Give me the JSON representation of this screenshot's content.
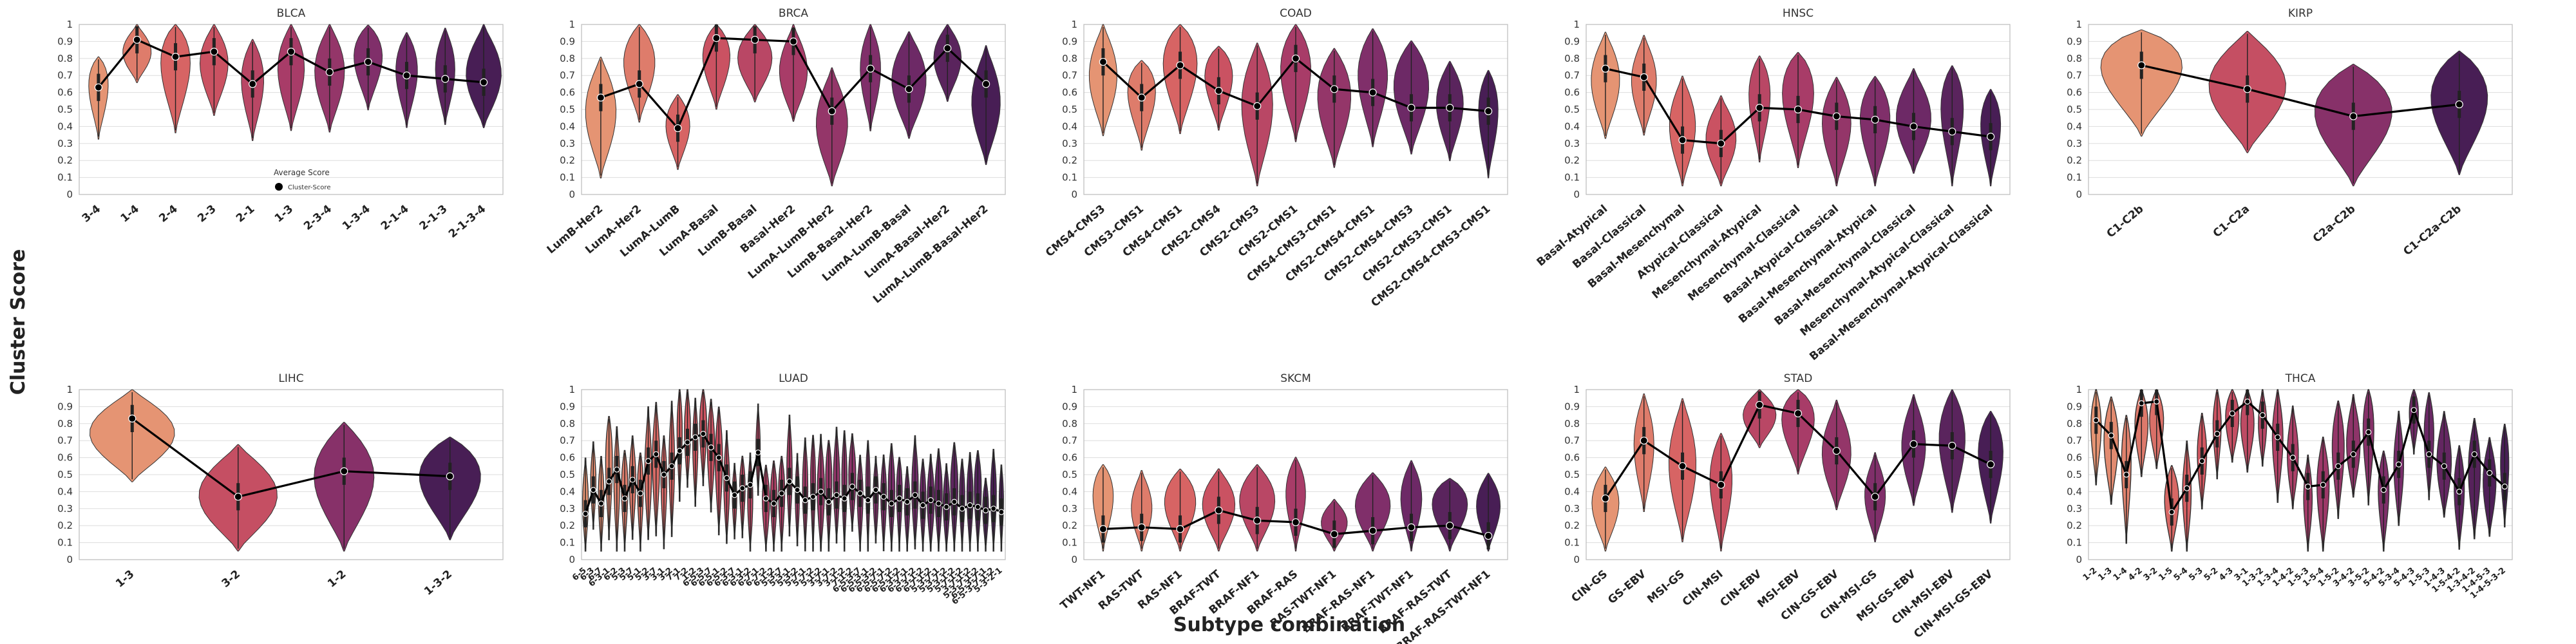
{
  "figure": {
    "ylabel": "Cluster Score",
    "xlabel": "Subtype combination"
  },
  "legend": {
    "title": "Average Score",
    "entry": "Cluster-Score"
  },
  "chart_data": [
    {
      "type": "violin",
      "title": "BLCA",
      "ylim": [
        0,
        1
      ],
      "yticks": [
        "0",
        "0.1",
        "0.2",
        "0.3",
        "0.4",
        "0.5",
        "0.6",
        "0.7",
        "0.8",
        "0.9",
        "1"
      ],
      "categories": [
        "3-4",
        "1-4",
        "2-4",
        "2-3",
        "2-1",
        "1-3",
        "2-3-4",
        "1-3-4",
        "2-1-4",
        "2-1-3",
        "2-1-3-4"
      ],
      "values": [
        0.63,
        0.91,
        0.81,
        0.84,
        0.65,
        0.84,
        0.72,
        0.78,
        0.7,
        0.68,
        0.66
      ],
      "has_legend": true
    },
    {
      "type": "violin",
      "title": "BRCA",
      "ylim": [
        0,
        1
      ],
      "yticks": [
        "0",
        "0.1",
        "0.2",
        "0.3",
        "0.4",
        "0.5",
        "0.6",
        "0.7",
        "0.8",
        "0.9",
        "1"
      ],
      "categories": [
        "LumB-Her2",
        "LumA-Her2",
        "LumA-LumB",
        "LumA-Basal",
        "LumB-Basal",
        "Basal-Her2",
        "LumA-LumB-Her2",
        "LumB-Basal-Her2",
        "LumA-LumB-Basal",
        "LumA-Basal-Her2",
        "LumA-LumB-Basal-Her2"
      ],
      "values": [
        0.57,
        0.65,
        0.39,
        0.92,
        0.91,
        0.9,
        0.49,
        0.74,
        0.62,
        0.86,
        0.65
      ]
    },
    {
      "type": "violin",
      "title": "COAD",
      "ylim": [
        0,
        1
      ],
      "yticks": [
        "0",
        "0.1",
        "0.2",
        "0.3",
        "0.4",
        "0.5",
        "0.6",
        "0.7",
        "0.8",
        "0.9",
        "1"
      ],
      "categories": [
        "CMS4-CMS3",
        "CMS3-CMS1",
        "CMS4-CMS1",
        "CMS2-CMS4",
        "CMS2-CMS3",
        "CMS2-CMS1",
        "CMS4-CMS3-CMS1",
        "CMS2-CMS4-CMS1",
        "CMS2-CMS4-CMS3",
        "CMS2-CMS3-CMS1",
        "CMS2-CMS4-CMS3-CMS1"
      ],
      "values": [
        0.78,
        0.57,
        0.76,
        0.61,
        0.52,
        0.8,
        0.62,
        0.6,
        0.51,
        0.51,
        0.49
      ]
    },
    {
      "type": "violin",
      "title": "HNSC",
      "ylim": [
        0,
        1
      ],
      "yticks": [
        "0",
        "0.1",
        "0.2",
        "0.3",
        "0.4",
        "0.5",
        "0.6",
        "0.7",
        "0.8",
        "0.9",
        "1"
      ],
      "categories": [
        "Basal-Atypical",
        "Basal-Classical",
        "Basal-Mesenchymal",
        "Atypical-Classical",
        "Mesenchymal-Atypical",
        "Mesenchymal-Classical",
        "Basal-Atypical-Classical",
        "Basal-Mesenchymal-Atypical",
        "Basal-Mesenchymal-Classical",
        "Mesenchymal-Atypical-Classical",
        "Basal-Mesenchymal-Atypical-Classical"
      ],
      "values": [
        0.74,
        0.69,
        0.32,
        0.3,
        0.51,
        0.5,
        0.46,
        0.44,
        0.4,
        0.37,
        0.34
      ]
    },
    {
      "type": "violin",
      "title": "KIRP",
      "ylim": [
        0,
        1
      ],
      "yticks": [
        "0",
        "0.1",
        "0.2",
        "0.3",
        "0.4",
        "0.5",
        "0.6",
        "0.7",
        "0.8",
        "0.9",
        "1"
      ],
      "categories": [
        "C1-C2b",
        "C1-C2a",
        "C2a-C2b",
        "C1-C2a-C2b"
      ],
      "values": [
        0.76,
        0.62,
        0.46,
        0.53
      ]
    },
    {
      "type": "violin",
      "title": "LIHC",
      "ylim": [
        0,
        1
      ],
      "yticks": [
        "0",
        "0.1",
        "0.2",
        "0.3",
        "0.4",
        "0.5",
        "0.6",
        "0.7",
        "0.8",
        "0.9",
        "1"
      ],
      "categories": [
        "1-3",
        "3-2",
        "1-2",
        "1-3-2"
      ],
      "values": [
        0.83,
        0.37,
        0.52,
        0.49
      ]
    },
    {
      "type": "violin",
      "title": "LUAD",
      "ylim": [
        0,
        1
      ],
      "yticks": [
        "0",
        "0.1",
        "0.2",
        "0.3",
        "0.4",
        "0.5",
        "0.6",
        "0.7",
        "0.8",
        "0.9",
        "1"
      ],
      "categories": [
        "6-5",
        "6-3",
        "6-7",
        "6-3-1",
        "6-2",
        "5-3",
        "5-7",
        "5-1",
        "5-2",
        "3-7",
        "3-1",
        "3-2",
        "7-1",
        "7-2",
        "1-2",
        "6-5-3",
        "6-5-7",
        "6-5-1",
        "6-5-2",
        "6-3-7",
        "6-3-1",
        "6-3-2",
        "6-7-1",
        "6-7-2",
        "6-1-2",
        "5-3-7",
        "5-3-1",
        "5-3-2",
        "5-7-1",
        "5-7-2",
        "5-1-2",
        "3-7-1",
        "3-7-2",
        "3-1-2",
        "7-1-2",
        "6-5-3-7",
        "6-5-3-1",
        "6-5-3-2",
        "6-5-7-1",
        "6-5-7-2",
        "6-5-1-2",
        "6-3-7-1",
        "6-3-7-2",
        "6-3-1-2",
        "6-7-1-2",
        "5-3-7-1",
        "5-3-7-2",
        "5-3-1-2",
        "5-7-1-2",
        "3-7-1-2",
        "5-3-7-1-2",
        "6-5-3-7-1",
        "6-5-3-7-1-2",
        "5-3-2-1"
      ],
      "values": [
        0.27,
        0.41,
        0.33,
        0.46,
        0.53,
        0.36,
        0.47,
        0.39,
        0.58,
        0.62,
        0.5,
        0.55,
        0.64,
        0.69,
        0.72,
        0.74,
        0.66,
        0.6,
        0.48,
        0.38,
        0.42,
        0.44,
        0.63,
        0.36,
        0.33,
        0.39,
        0.46,
        0.41,
        0.35,
        0.37,
        0.4,
        0.34,
        0.38,
        0.36,
        0.43,
        0.39,
        0.35,
        0.41,
        0.37,
        0.33,
        0.36,
        0.34,
        0.38,
        0.32,
        0.35,
        0.33,
        0.31,
        0.34,
        0.3,
        0.32,
        0.31,
        0.29,
        0.3,
        0.28
      ]
    },
    {
      "type": "violin",
      "title": "SKCM",
      "ylim": [
        0,
        1
      ],
      "yticks": [
        "0",
        "0.1",
        "0.2",
        "0.3",
        "0.4",
        "0.5",
        "0.6",
        "0.7",
        "0.8",
        "0.9",
        "1"
      ],
      "categories": [
        "TWT-NF1",
        "RAS-TWT",
        "RAS-NF1",
        "BRAF-TWT",
        "BRAF-NF1",
        "BRAF-RAS",
        "RAS-TWT-NF1",
        "BRAF-RAS-NF1",
        "BRAF-TWT-NF1",
        "BRAF-RAS-TWT",
        "BRAF-RAS-TWT-NF1"
      ],
      "values": [
        0.18,
        0.19,
        0.18,
        0.29,
        0.23,
        0.22,
        0.15,
        0.17,
        0.19,
        0.2,
        0.14
      ]
    },
    {
      "type": "violin",
      "title": "STAD",
      "ylim": [
        0,
        1
      ],
      "yticks": [
        "0",
        "0.1",
        "0.2",
        "0.3",
        "0.4",
        "0.5",
        "0.6",
        "0.7",
        "0.8",
        "0.9",
        "1"
      ],
      "categories": [
        "CIN-GS",
        "GS-EBV",
        "MSI-GS",
        "CIN-MSI",
        "CIN-EBV",
        "MSI-EBV",
        "CIN-GS-EBV",
        "CIN-MSI-GS",
        "MSI-GS-EBV",
        "CIN-MSI-EBV",
        "CIN-MSI-GS-EBV"
      ],
      "values": [
        0.36,
        0.7,
        0.55,
        0.44,
        0.91,
        0.86,
        0.64,
        0.37,
        0.68,
        0.67,
        0.56
      ]
    },
    {
      "type": "violin",
      "title": "THCA",
      "ylim": [
        0,
        1
      ],
      "yticks": [
        "0",
        "0.1",
        "0.2",
        "0.3",
        "0.4",
        "0.5",
        "0.6",
        "0.7",
        "0.8",
        "0.9",
        "1"
      ],
      "categories": [
        "1-2",
        "1-3",
        "1-4",
        "4-2",
        "3-2",
        "1-5",
        "5-4",
        "5-3",
        "5-2",
        "4-3",
        "3-1",
        "1-3-2",
        "1-3-4",
        "1-4-2",
        "1-5-3",
        "1-5-4",
        "1-5-2",
        "3-4-2",
        "3-5-2",
        "5-4-2",
        "5-3-4",
        "5-4-3",
        "1-5-3",
        "1-4-3",
        "1-5-4-2",
        "1-3-4-2",
        "1-4-5-3",
        "1-4-5-3-2"
      ],
      "values": [
        0.82,
        0.73,
        0.5,
        0.92,
        0.93,
        0.28,
        0.42,
        0.58,
        0.74,
        0.86,
        0.93,
        0.85,
        0.72,
        0.6,
        0.43,
        0.44,
        0.55,
        0.62,
        0.75,
        0.41,
        0.56,
        0.88,
        0.62,
        0.55,
        0.4,
        0.62,
        0.51,
        0.43
      ]
    }
  ]
}
